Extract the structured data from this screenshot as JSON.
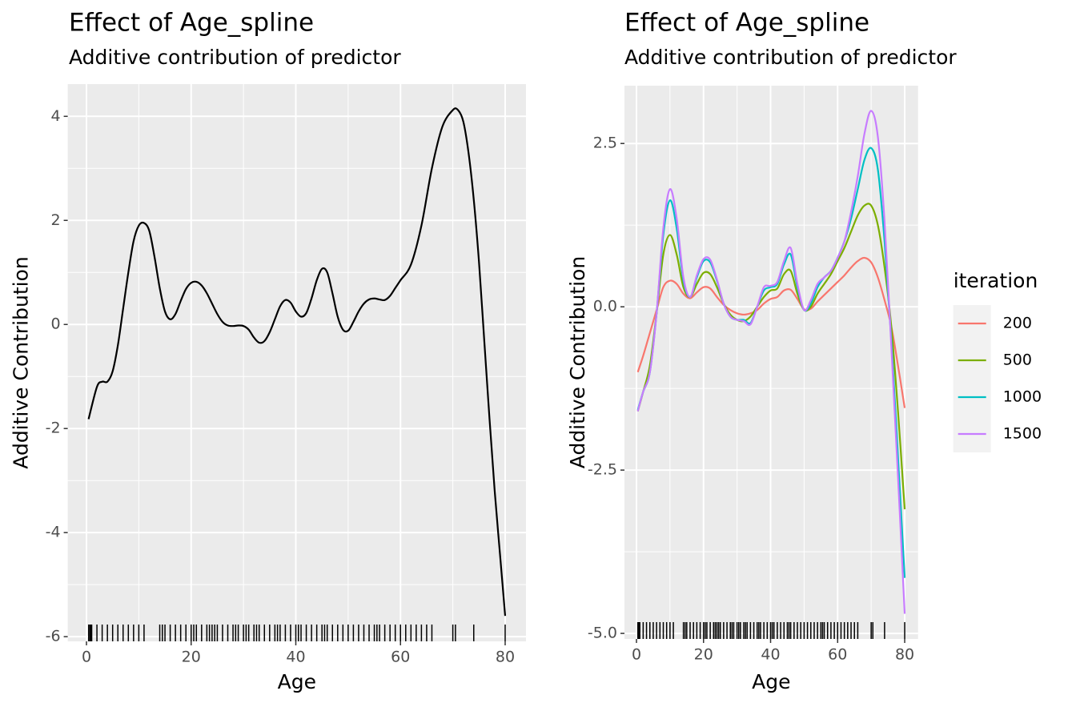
{
  "chart_data": [
    {
      "type": "line",
      "title": "Effect of Age_spline",
      "subtitle": "Additive contribution of predictor",
      "x_label": "Age",
      "y_label": "Additive Contribution",
      "x": [
        0.4,
        2,
        3,
        4,
        5,
        6,
        7,
        8,
        9,
        10,
        11,
        12,
        13,
        14,
        15,
        16,
        17,
        18,
        19,
        20,
        21,
        22,
        23,
        24,
        25,
        26,
        27,
        28,
        29,
        30,
        31,
        32,
        33,
        34,
        35,
        36,
        37,
        38,
        39,
        40,
        41,
        42,
        43,
        44,
        45,
        46,
        47,
        48,
        49,
        50,
        51,
        52,
        53,
        54,
        55,
        56,
        57,
        58,
        59,
        60,
        62,
        64,
        66,
        68,
        70,
        71,
        72,
        73,
        74,
        75,
        76,
        77,
        78,
        79,
        80
      ],
      "series": [
        {
          "color": "#000000",
          "values": [
            -1.82,
            -1.2,
            -1.1,
            -1.1,
            -0.9,
            -0.4,
            0.3,
            1.0,
            1.6,
            1.9,
            1.95,
            1.8,
            1.3,
            0.7,
            0.25,
            0.1,
            0.2,
            0.45,
            0.68,
            0.8,
            0.82,
            0.75,
            0.6,
            0.4,
            0.2,
            0.05,
            -0.02,
            -0.03,
            -0.02,
            -0.03,
            -0.1,
            -0.25,
            -0.35,
            -0.32,
            -0.15,
            0.1,
            0.35,
            0.47,
            0.42,
            0.25,
            0.15,
            0.22,
            0.5,
            0.85,
            1.07,
            1.0,
            0.6,
            0.15,
            -0.1,
            -0.12,
            0.05,
            0.25,
            0.4,
            0.48,
            0.5,
            0.48,
            0.47,
            0.55,
            0.7,
            0.85,
            1.15,
            1.9,
            3.0,
            3.8,
            4.12,
            4.12,
            3.9,
            3.3,
            2.4,
            1.2,
            -0.3,
            -1.8,
            -3.2,
            -4.4,
            -5.6
          ]
        }
      ],
      "rug": [
        0.42,
        0.67,
        0.83,
        1,
        2,
        3,
        4,
        5,
        6,
        7,
        8,
        9,
        10,
        11,
        14,
        14.5,
        15,
        16,
        17,
        18,
        19,
        20,
        20.5,
        21,
        22,
        23,
        23.5,
        24,
        24.5,
        25,
        26,
        27,
        28,
        28.5,
        29,
        30,
        30.5,
        31,
        32,
        32.5,
        33,
        34,
        35,
        36,
        36.5,
        37,
        38,
        39,
        40,
        40.5,
        41,
        42,
        43,
        44,
        45,
        45.5,
        46,
        47,
        48,
        49,
        50,
        51,
        52,
        53,
        54,
        55,
        55.5,
        56,
        57,
        58,
        59,
        60,
        61,
        62,
        63,
        64,
        65,
        66,
        70,
        70.5,
        74,
        80
      ],
      "xlim": [
        -3.58,
        83.98
      ],
      "xticks": [
        0,
        20,
        40,
        60,
        80
      ],
      "ylim": [
        -6.09,
        4.62
      ],
      "yticks": [
        -6,
        -4,
        -2,
        0,
        2,
        4
      ],
      "grid": true
    },
    {
      "type": "line",
      "title": "Effect of Age_spline",
      "subtitle": "Additive contribution of predictor",
      "x_label": "Age",
      "y_label": "Additive Contribution",
      "legend_title": "iteration",
      "legend": "right",
      "x": [
        0.4,
        2,
        4,
        6,
        8,
        10,
        12,
        14,
        16,
        18,
        20,
        22,
        24,
        26,
        28,
        30,
        32,
        34,
        36,
        38,
        40,
        42,
        44,
        46,
        48,
        50,
        52,
        54,
        56,
        58,
        60,
        62,
        64,
        66,
        68,
        70,
        72,
        74,
        76,
        78,
        80
      ],
      "series": [
        {
          "name": "200",
          "color": "#f8766d",
          "values": [
            -1.0,
            -0.75,
            -0.4,
            -0.05,
            0.3,
            0.4,
            0.35,
            0.2,
            0.13,
            0.22,
            0.3,
            0.28,
            0.15,
            0.03,
            -0.05,
            -0.1,
            -0.12,
            -0.1,
            -0.05,
            0.05,
            0.12,
            0.15,
            0.25,
            0.26,
            0.12,
            -0.04,
            -0.03,
            0.08,
            0.18,
            0.28,
            0.38,
            0.48,
            0.6,
            0.7,
            0.75,
            0.68,
            0.45,
            0.1,
            -0.3,
            -0.9,
            -1.55
          ]
        },
        {
          "name": "500",
          "color": "#7cae00",
          "values": [
            -1.6,
            -1.3,
            -0.9,
            -0.1,
            0.8,
            1.1,
            0.8,
            0.3,
            0.15,
            0.35,
            0.52,
            0.5,
            0.3,
            0.05,
            -0.12,
            -0.2,
            -0.22,
            -0.15,
            0.0,
            0.15,
            0.25,
            0.28,
            0.5,
            0.55,
            0.2,
            -0.05,
            0.0,
            0.2,
            0.35,
            0.5,
            0.7,
            0.9,
            1.15,
            1.4,
            1.55,
            1.55,
            1.25,
            0.6,
            -0.3,
            -1.6,
            -3.1
          ]
        },
        {
          "name": "1000",
          "color": "#00bfc4",
          "values": [
            -1.58,
            -1.3,
            -1.0,
            -0.1,
            1.1,
            1.63,
            1.2,
            0.4,
            0.15,
            0.45,
            0.7,
            0.68,
            0.4,
            0.05,
            -0.15,
            -0.2,
            -0.2,
            -0.25,
            0.0,
            0.25,
            0.3,
            0.35,
            0.65,
            0.8,
            0.3,
            -0.05,
            0.05,
            0.3,
            0.45,
            0.55,
            0.75,
            1.0,
            1.35,
            1.8,
            2.25,
            2.43,
            2.1,
            1.0,
            -0.5,
            -2.3,
            -4.15
          ]
        },
        {
          "name": "1500",
          "color": "#c77cff",
          "values": [
            -1.6,
            -1.3,
            -1.0,
            -0.1,
            1.2,
            1.8,
            1.35,
            0.45,
            0.15,
            0.48,
            0.73,
            0.72,
            0.42,
            0.05,
            -0.15,
            -0.2,
            -0.22,
            -0.27,
            0.0,
            0.3,
            0.32,
            0.38,
            0.7,
            0.9,
            0.35,
            -0.05,
            0.1,
            0.35,
            0.45,
            0.55,
            0.75,
            1.0,
            1.45,
            2.0,
            2.65,
            3.0,
            2.6,
            1.3,
            -0.6,
            -2.6,
            -4.7
          ]
        }
      ],
      "rug": [
        0.42,
        0.67,
        0.83,
        1,
        2,
        3,
        4,
        5,
        6,
        7,
        8,
        9,
        10,
        11,
        14,
        14.5,
        15,
        16,
        17,
        18,
        19,
        20,
        20.5,
        21,
        22,
        23,
        23.5,
        24,
        24.5,
        25,
        26,
        27,
        28,
        28.5,
        29,
        30,
        30.5,
        31,
        32,
        32.5,
        33,
        34,
        35,
        36,
        36.5,
        37,
        38,
        39,
        40,
        40.5,
        41,
        42,
        43,
        44,
        45,
        45.5,
        46,
        47,
        48,
        49,
        50,
        51,
        52,
        53,
        54,
        55,
        55.5,
        56,
        57,
        58,
        59,
        60,
        61,
        62,
        63,
        64,
        65,
        66,
        70,
        70.5,
        74,
        80
      ],
      "xlim": [
        -3.58,
        83.98
      ],
      "xticks": [
        0,
        20,
        40,
        60,
        80
      ],
      "ylim": [
        -5.085,
        3.385
      ],
      "yticks": [
        {
          "value": -5,
          "label": "-5.0"
        },
        -2.5,
        {
          "value": 0,
          "label": "0.0"
        },
        2.5
      ],
      "grid": true
    }
  ]
}
